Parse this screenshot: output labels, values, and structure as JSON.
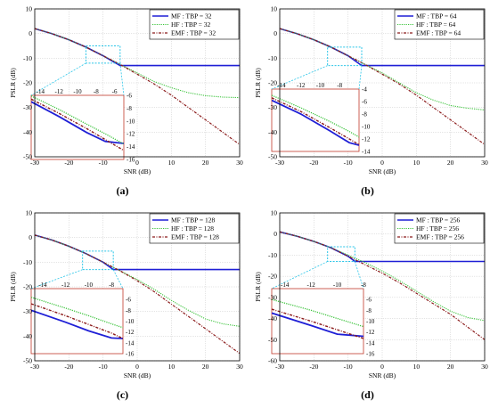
{
  "colors": {
    "mf": "#1f1fd6",
    "hf": "#3ec43e",
    "emf": "#8b1a1a",
    "zoom": "#29c5e8",
    "inset_border": "#c0392b"
  },
  "chart_data": [
    {
      "type": "line",
      "caption": "(a)",
      "xlabel": "SNR (dB)",
      "ylabel": "PSLR (dB)",
      "xlim": [
        -30,
        30
      ],
      "ylim": [
        -50,
        10
      ],
      "xticks": [
        -30,
        -20,
        -10,
        0,
        10,
        20,
        30
      ],
      "yticks": [
        10,
        0,
        -10,
        -20,
        -30,
        -40,
        -50
      ],
      "legend_position": "top-right",
      "series": [
        {
          "name": "MF : TBP = 32",
          "x": [
            -30,
            -25,
            -20,
            -15,
            -10,
            -5,
            0,
            10,
            20,
            30
          ],
          "y": [
            2,
            0,
            -2.5,
            -5.5,
            -9,
            -13,
            -13,
            -13,
            -13,
            -13
          ]
        },
        {
          "name": "HF : TBP = 32",
          "x": [
            -30,
            -25,
            -20,
            -15,
            -10,
            -5,
            0,
            5,
            10,
            15,
            20,
            25,
            30
          ],
          "y": [
            2,
            0,
            -2.5,
            -5.5,
            -9,
            -12.5,
            -16,
            -19.5,
            -22,
            -24,
            -25.2,
            -25.8,
            -26
          ]
        },
        {
          "name": "EMF : TBP = 32",
          "x": [
            -30,
            -25,
            -20,
            -15,
            -10,
            -5,
            0,
            5,
            10,
            15,
            20,
            25,
            30
          ],
          "y": [
            2,
            0,
            -2.5,
            -5.5,
            -9,
            -12.5,
            -16.5,
            -20.5,
            -25,
            -30,
            -35,
            -40,
            -45
          ]
        }
      ],
      "inset": {
        "xlim": [
          -15,
          -5
        ],
        "ylim": [
          -16,
          -6
        ],
        "xticks": [
          -14,
          -12,
          -10,
          -8,
          -6
        ],
        "yticks": [
          -6,
          -8,
          -10,
          -12,
          -14,
          -16
        ],
        "series": [
          {
            "name": "MF",
            "x": [
              -15,
              -12,
              -9,
              -7,
              -5
            ],
            "y": [
              -7,
              -9.3,
              -11.8,
              -13.2,
              -13.5
            ]
          },
          {
            "name": "HF",
            "x": [
              -15,
              -12,
              -9,
              -7,
              -5
            ],
            "y": [
              -6.1,
              -8.2,
              -10.5,
              -12,
              -13.6
            ]
          },
          {
            "name": "EMF",
            "x": [
              -15,
              -12,
              -9,
              -7,
              -5
            ],
            "y": [
              -6.6,
              -8.8,
              -11.2,
              -12.9,
              -14.6
            ]
          }
        ]
      }
    },
    {
      "type": "line",
      "caption": "(b)",
      "xlabel": "SNR (dB)",
      "ylabel": "PSLR (dB)",
      "xlim": [
        -30,
        30
      ],
      "ylim": [
        -50,
        10
      ],
      "xticks": [
        -30,
        -20,
        -10,
        0,
        10,
        20,
        30
      ],
      "yticks": [
        10,
        0,
        -10,
        -20,
        -30,
        -40,
        -50
      ],
      "legend_position": "top-right",
      "series": [
        {
          "name": "MF : TBP = 64",
          "x": [
            -30,
            -25,
            -20,
            -15,
            -10,
            -6,
            0,
            10,
            20,
            30
          ],
          "y": [
            2,
            0,
            -2.5,
            -5.5,
            -9,
            -13,
            -13,
            -13,
            -13,
            -13
          ]
        },
        {
          "name": "HF : TBP = 64",
          "x": [
            -30,
            -25,
            -20,
            -15,
            -10,
            -5,
            0,
            5,
            10,
            15,
            20,
            25,
            30
          ],
          "y": [
            2,
            0,
            -2.5,
            -5.5,
            -9,
            -12.5,
            -16,
            -20,
            -24,
            -27,
            -29.2,
            -30.3,
            -31
          ]
        },
        {
          "name": "EMF : TBP = 64",
          "x": [
            -30,
            -25,
            -20,
            -15,
            -10,
            -5,
            0,
            5,
            10,
            15,
            20,
            25,
            30
          ],
          "y": [
            2,
            0,
            -2.5,
            -5.5,
            -9,
            -12.5,
            -16.5,
            -20.5,
            -25,
            -30,
            -35,
            -40,
            -45
          ]
        }
      ],
      "inset": {
        "xlim": [
          -15,
          -6
        ],
        "ylim": [
          -14,
          -4
        ],
        "xticks": [
          -14,
          -12,
          -10,
          -8
        ],
        "yticks": [
          -4,
          -6,
          -8,
          -10,
          -12,
          -14
        ],
        "series": [
          {
            "name": "MF",
            "x": [
              -15,
              -12,
              -9,
              -7,
              -6
            ],
            "y": [
              -5.8,
              -8,
              -10.7,
              -12.6,
              -13
            ]
          },
          {
            "name": "HF",
            "x": [
              -15,
              -12,
              -9,
              -7,
              -6
            ],
            "y": [
              -5,
              -7,
              -9.2,
              -10.8,
              -11.7
            ]
          },
          {
            "name": "EMF",
            "x": [
              -15,
              -12,
              -9,
              -7,
              -6
            ],
            "y": [
              -5.4,
              -7.6,
              -10.2,
              -12,
              -12.9
            ]
          }
        ]
      }
    },
    {
      "type": "line",
      "caption": "(c)",
      "xlabel": "SNR (dB)",
      "ylabel": "PSLR (dB)",
      "xlim": [
        -30,
        30
      ],
      "ylim": [
        -50,
        10
      ],
      "xticks": [
        -30,
        -20,
        -10,
        0,
        10,
        20,
        30
      ],
      "yticks": [
        10,
        0,
        -10,
        -20,
        -30,
        -40,
        -50
      ],
      "legend_position": "top-right",
      "series": [
        {
          "name": "MF : TBP = 128",
          "x": [
            -30,
            -25,
            -20,
            -15,
            -10,
            -7,
            0,
            10,
            20,
            30
          ],
          "y": [
            1,
            -1,
            -3.5,
            -6.5,
            -10,
            -13,
            -13,
            -13,
            -13,
            -13
          ]
        },
        {
          "name": "HF : TBP = 128",
          "x": [
            -30,
            -25,
            -20,
            -15,
            -10,
            -5,
            0,
            5,
            10,
            15,
            20,
            25,
            30
          ],
          "y": [
            1,
            -1,
            -3.5,
            -6.5,
            -10,
            -13.5,
            -17,
            -21,
            -25.5,
            -29.5,
            -33,
            -35,
            -36
          ]
        },
        {
          "name": "EMF : TBP = 128",
          "x": [
            -30,
            -25,
            -20,
            -15,
            -10,
            -5,
            0,
            5,
            10,
            15,
            20,
            25,
            30
          ],
          "y": [
            1,
            -1,
            -3.5,
            -6.5,
            -10,
            -13.5,
            -17.5,
            -22,
            -27,
            -32,
            -37,
            -42,
            -47
          ]
        }
      ],
      "inset": {
        "xlim": [
          -15,
          -7
        ],
        "ylim": [
          -16,
          -4
        ],
        "xticks": [
          -14,
          -12,
          -10,
          -8
        ],
        "yticks": [
          -6,
          -8,
          -10,
          -12,
          -14,
          -16
        ],
        "series": [
          {
            "name": "MF",
            "x": [
              -15,
              -12,
              -10,
              -8,
              -7
            ],
            "y": [
              -8,
              -10.2,
              -11.8,
              -13.1,
              -13.2
            ]
          },
          {
            "name": "HF",
            "x": [
              -15,
              -12,
              -10,
              -8,
              -7
            ],
            "y": [
              -5.6,
              -7.6,
              -9,
              -10.5,
              -11.2
            ]
          },
          {
            "name": "EMF",
            "x": [
              -15,
              -12,
              -10,
              -8,
              -7
            ],
            "y": [
              -6.8,
              -9,
              -10.6,
              -12.2,
              -13.2
            ]
          }
        ]
      }
    },
    {
      "type": "line",
      "caption": "(d)",
      "xlabel": "SNR (dB)",
      "ylabel": "PSLR (dB)",
      "xlim": [
        -30,
        30
      ],
      "ylim": [
        -60,
        10
      ],
      "xticks": [
        -30,
        -20,
        -10,
        0,
        10,
        20,
        30
      ],
      "yticks": [
        10,
        0,
        -10,
        -20,
        -30,
        -40,
        -50,
        -60
      ],
      "legend_position": "top-right",
      "series": [
        {
          "name": "MF : TBP = 256",
          "x": [
            -30,
            -25,
            -20,
            -15,
            -10,
            -8,
            0,
            10,
            20,
            30
          ],
          "y": [
            1,
            -1,
            -3.5,
            -6.5,
            -10.5,
            -13,
            -13,
            -13,
            -13,
            -13
          ]
        },
        {
          "name": "HF : TBP = 256",
          "x": [
            -30,
            -25,
            -20,
            -15,
            -10,
            -5,
            0,
            5,
            10,
            15,
            20,
            25,
            30
          ],
          "y": [
            1,
            -1,
            -3.5,
            -6.5,
            -10,
            -13.5,
            -17.5,
            -22,
            -27,
            -32,
            -36.5,
            -39.5,
            -41
          ]
        },
        {
          "name": "EMF : TBP = 256",
          "x": [
            -30,
            -25,
            -20,
            -15,
            -10,
            -5,
            0,
            5,
            10,
            15,
            20,
            25,
            30
          ],
          "y": [
            1,
            -1,
            -3.5,
            -6.5,
            -10.5,
            -14.5,
            -18.5,
            -23,
            -28,
            -33,
            -38,
            -44,
            -50
          ]
        }
      ],
      "inset": {
        "xlim": [
          -15,
          -8
        ],
        "ylim": [
          -16,
          -4
        ],
        "xticks": [
          -14,
          -12,
          -10,
          -8
        ],
        "yticks": [
          -6,
          -8,
          -10,
          -12,
          -14,
          -16
        ],
        "series": [
          {
            "name": "MF",
            "x": [
              -15,
              -12,
              -10,
              -8
            ],
            "y": [
              -8.5,
              -10.8,
              -12.4,
              -12.8
            ]
          },
          {
            "name": "HF",
            "x": [
              -15,
              -12,
              -10,
              -8
            ],
            "y": [
              -6,
              -8,
              -9.5,
              -11
            ]
          },
          {
            "name": "EMF",
            "x": [
              -15,
              -12,
              -10,
              -8
            ],
            "y": [
              -7.8,
              -10,
              -11.6,
              -13.2
            ]
          }
        ]
      }
    }
  ]
}
